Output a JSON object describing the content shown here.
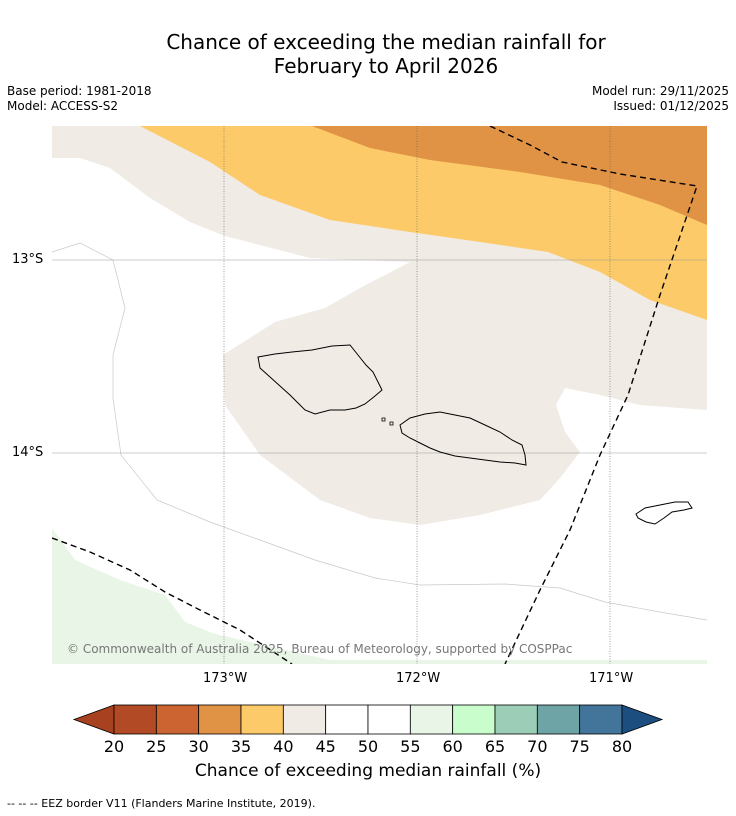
{
  "title": {
    "line1": "Chance of exceeding the median rainfall for",
    "line2": "February to April 2026"
  },
  "meta": {
    "base_period": "Base period: 1981-2018",
    "model": "Model: ACCESS-S2",
    "model_run": "Model run: 29/11/2025",
    "issued": "Issued: 01/12/2025"
  },
  "map": {
    "lat_labels": [
      "13°S",
      "14°S"
    ],
    "lon_labels": [
      "173°W",
      "172°W",
      "171°W"
    ],
    "copyright": "© Commonwealth of Australia 2025, Bureau of Meteorology, supported by COSPPac",
    "colors": {
      "dark_orange": "#e09245",
      "light_orange": "#fdca69",
      "neutral": "#f0ebe5",
      "light_green": "#e9f5e6",
      "white": "#ffffff"
    }
  },
  "colorbar": {
    "ticks": [
      "20",
      "25",
      "30",
      "35",
      "40",
      "45",
      "50",
      "55",
      "60",
      "65",
      "70",
      "75",
      "80"
    ],
    "colors": [
      "#a8411f",
      "#b24a25",
      "#cc6431",
      "#e09245",
      "#fdca69",
      "#f0ebe5",
      "#ffffff",
      "#ffffff",
      "#e9f5e6",
      "#c9fdcb",
      "#9ccdb6",
      "#6ea4a6",
      "#43759a",
      "#1c4e80"
    ],
    "label": "Chance of exceeding median rainfall (%)"
  },
  "footnote": "--  --  -- EEZ border V11 (Flanders Marine Institute, 2019)."
}
